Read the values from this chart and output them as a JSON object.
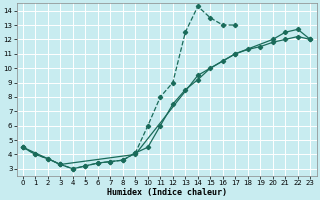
{
  "xlabel": "Humidex (Indice chaleur)",
  "ylabel": "",
  "bg_color": "#c8ecf0",
  "grid_color": "#ffffff",
  "line_color": "#1a6b5a",
  "xlim": [
    -0.5,
    23.5
  ],
  "ylim": [
    2.5,
    14.5
  ],
  "xticks": [
    0,
    1,
    2,
    3,
    4,
    5,
    6,
    7,
    8,
    9,
    10,
    11,
    12,
    13,
    14,
    15,
    16,
    17,
    18,
    19,
    20,
    21,
    22,
    23
  ],
  "yticks": [
    3,
    4,
    5,
    6,
    7,
    8,
    9,
    10,
    11,
    12,
    13,
    14
  ],
  "line1_x": [
    0,
    1,
    2,
    3,
    4,
    5,
    6,
    7,
    8,
    9,
    10,
    11,
    12,
    13,
    14,
    15,
    16,
    17
  ],
  "line1_y": [
    4.5,
    4.0,
    3.7,
    3.3,
    3.0,
    3.2,
    3.4,
    3.5,
    3.6,
    4.1,
    6.0,
    8.0,
    9.0,
    12.5,
    14.3,
    13.5,
    13.0,
    13.0
  ],
  "line2_x": [
    0,
    1,
    2,
    3,
    4,
    5,
    6,
    7,
    8,
    9,
    10,
    11,
    12,
    13,
    14,
    15,
    16,
    17,
    18,
    19,
    20,
    21,
    22,
    23
  ],
  "line2_y": [
    4.5,
    4.0,
    3.7,
    3.3,
    3.0,
    3.2,
    3.4,
    3.5,
    3.6,
    4.1,
    4.5,
    6.0,
    7.5,
    8.5,
    9.2,
    10.0,
    10.5,
    11.0,
    11.3,
    11.5,
    11.8,
    12.0,
    12.2,
    12.0
  ],
  "line3_x": [
    0,
    3,
    9,
    14,
    17,
    20,
    21,
    22,
    23
  ],
  "line3_y": [
    4.5,
    3.3,
    4.0,
    9.5,
    11.0,
    12.0,
    12.5,
    12.7,
    12.0
  ]
}
